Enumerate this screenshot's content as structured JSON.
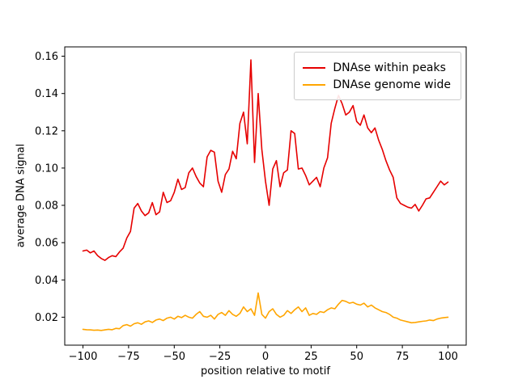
{
  "chart_data": {
    "type": "line",
    "title": "",
    "xlabel": "position relative to motif",
    "ylabel": "average DNA signal",
    "xlim": [
      -110,
      110
    ],
    "ylim": [
      0.005,
      0.165
    ],
    "xticks": [
      -100,
      -75,
      -50,
      -25,
      0,
      25,
      50,
      75,
      100
    ],
    "yticks": [
      0.02,
      0.04,
      0.06,
      0.08,
      0.1,
      0.12,
      0.14,
      0.16
    ],
    "grid": false,
    "legend_position": "upper right",
    "x": [
      -100,
      -98,
      -96,
      -94,
      -92,
      -90,
      -88,
      -86,
      -84,
      -82,
      -80,
      -78,
      -76,
      -74,
      -72,
      -70,
      -68,
      -66,
      -64,
      -62,
      -60,
      -58,
      -56,
      -54,
      -52,
      -50,
      -48,
      -46,
      -44,
      -42,
      -40,
      -38,
      -36,
      -34,
      -32,
      -30,
      -28,
      -26,
      -24,
      -22,
      -20,
      -18,
      -16,
      -14,
      -12,
      -10,
      -8,
      -6,
      -4,
      -2,
      0,
      2,
      4,
      6,
      8,
      10,
      12,
      14,
      16,
      18,
      20,
      22,
      24,
      26,
      28,
      30,
      32,
      34,
      36,
      38,
      40,
      42,
      44,
      46,
      48,
      50,
      52,
      54,
      56,
      58,
      60,
      62,
      64,
      66,
      68,
      70,
      72,
      74,
      76,
      78,
      80,
      82,
      84,
      86,
      88,
      90,
      92,
      94,
      96,
      98,
      100
    ],
    "series": [
      {
        "name": "DNAse within peaks",
        "color": "#e60000",
        "values": [
          0.0555,
          0.056,
          0.0545,
          0.0555,
          0.053,
          0.0515,
          0.0505,
          0.052,
          0.053,
          0.0525,
          0.055,
          0.057,
          0.0625,
          0.066,
          0.0785,
          0.081,
          0.077,
          0.0745,
          0.076,
          0.0815,
          0.075,
          0.0765,
          0.087,
          0.0815,
          0.0825,
          0.087,
          0.094,
          0.0885,
          0.0895,
          0.0975,
          0.1,
          0.0955,
          0.092,
          0.09,
          0.106,
          0.1095,
          0.1085,
          0.093,
          0.087,
          0.0965,
          0.0995,
          0.109,
          0.105,
          0.124,
          0.13,
          0.113,
          0.158,
          0.103,
          0.14,
          0.11,
          0.093,
          0.08,
          0.0995,
          0.104,
          0.09,
          0.0975,
          0.099,
          0.12,
          0.1185,
          0.0995,
          0.1,
          0.096,
          0.091,
          0.093,
          0.095,
          0.09,
          0.1,
          0.1055,
          0.124,
          0.132,
          0.139,
          0.1345,
          0.1285,
          0.13,
          0.1335,
          0.125,
          0.123,
          0.1285,
          0.1215,
          0.119,
          0.1215,
          0.115,
          0.11,
          0.104,
          0.099,
          0.095,
          0.084,
          0.081,
          0.08,
          0.079,
          0.0785,
          0.0805,
          0.077,
          0.08,
          0.0835,
          0.084,
          0.087,
          0.09,
          0.093,
          0.091,
          0.0925
        ]
      },
      {
        "name": "DNAse genome wide",
        "color": "#ffa500",
        "values": [
          0.0135,
          0.0133,
          0.0132,
          0.013,
          0.0131,
          0.0129,
          0.0132,
          0.0135,
          0.0133,
          0.014,
          0.0138,
          0.0155,
          0.016,
          0.0152,
          0.0165,
          0.017,
          0.0162,
          0.0175,
          0.018,
          0.0172,
          0.0185,
          0.019,
          0.0182,
          0.0195,
          0.02,
          0.019,
          0.0205,
          0.0198,
          0.021,
          0.02,
          0.0195,
          0.0215,
          0.023,
          0.0205,
          0.02,
          0.021,
          0.019,
          0.0215,
          0.0225,
          0.021,
          0.0235,
          0.0215,
          0.0205,
          0.022,
          0.0255,
          0.023,
          0.0245,
          0.021,
          0.033,
          0.0215,
          0.0195,
          0.023,
          0.0245,
          0.0215,
          0.02,
          0.021,
          0.0235,
          0.022,
          0.024,
          0.0255,
          0.023,
          0.025,
          0.021,
          0.022,
          0.0215,
          0.023,
          0.0225,
          0.024,
          0.025,
          0.0245,
          0.027,
          0.029,
          0.0285,
          0.0275,
          0.028,
          0.027,
          0.0265,
          0.0275,
          0.0255,
          0.0265,
          0.025,
          0.024,
          0.023,
          0.0225,
          0.0215,
          0.02,
          0.0195,
          0.0185,
          0.018,
          0.0175,
          0.017,
          0.0172,
          0.0175,
          0.0178,
          0.018,
          0.0185,
          0.0182,
          0.019,
          0.0195,
          0.0198,
          0.02
        ]
      }
    ]
  }
}
